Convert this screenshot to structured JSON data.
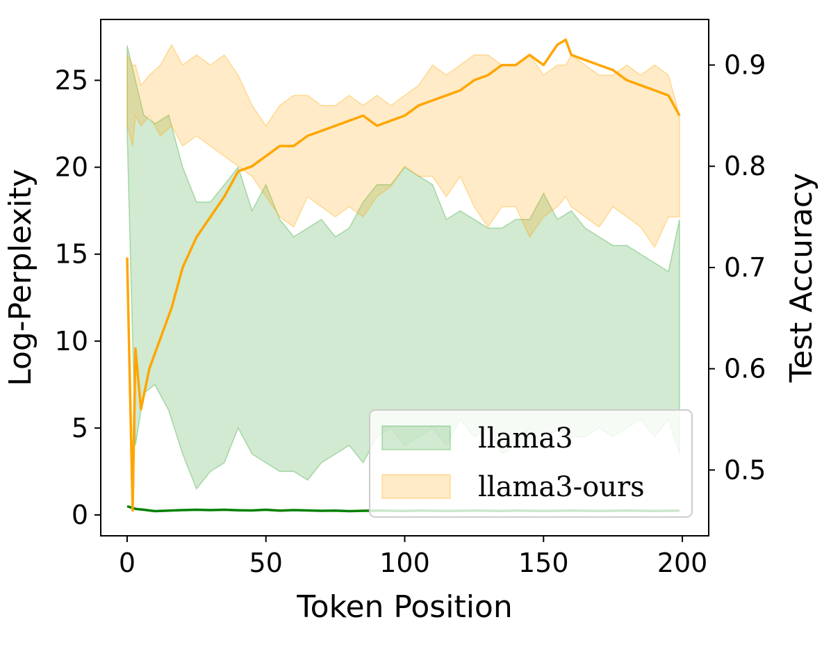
{
  "chart_data": {
    "type": "line",
    "xlabel": "Token Position",
    "ylabel_left": "Log-Perplexity",
    "ylabel_right": "Test Accuracy",
    "xlim": [
      -9.5,
      209.5
    ],
    "ylim_left": [
      -1.2,
      28.5
    ],
    "ylim_right": [
      0.435,
      0.945
    ],
    "xticks": [
      0,
      50,
      100,
      150,
      200
    ],
    "yticks_left": [
      0,
      5,
      10,
      15,
      20,
      25
    ],
    "yticks_right": [
      0.5,
      0.6,
      0.7,
      0.8,
      0.9
    ],
    "legend_position": "lower-right",
    "series": [
      {
        "name": "llama3",
        "axis": "left",
        "color": "#008000",
        "band_color": "#2ca02c",
        "x": [
          0,
          3,
          6,
          10,
          15,
          20,
          25,
          30,
          35,
          40,
          45,
          50,
          55,
          60,
          65,
          70,
          75,
          80,
          85,
          90,
          95,
          100,
          105,
          110,
          115,
          120,
          125,
          130,
          135,
          140,
          145,
          150,
          155,
          160,
          165,
          170,
          175,
          180,
          185,
          190,
          195,
          199
        ],
        "mean": [
          0.5,
          0.35,
          0.3,
          0.22,
          0.25,
          0.28,
          0.3,
          0.28,
          0.3,
          0.27,
          0.26,
          0.3,
          0.25,
          0.28,
          0.26,
          0.24,
          0.25,
          0.22,
          0.24,
          0.25,
          0.24,
          0.23,
          0.25,
          0.24,
          0.23,
          0.24,
          0.25,
          0.24,
          0.23,
          0.25,
          0.24,
          0.23,
          0.24,
          0.25,
          0.24,
          0.23,
          0.24,
          0.25,
          0.24,
          0.23,
          0.24,
          0.25
        ],
        "upper": [
          27.0,
          25.0,
          23.0,
          22.5,
          23.0,
          20.0,
          18.0,
          18.0,
          19.0,
          20.0,
          17.5,
          19.0,
          17.0,
          16.0,
          16.5,
          17.0,
          16.0,
          16.5,
          18.0,
          19.0,
          19.0,
          20.0,
          19.5,
          19.0,
          17.0,
          17.5,
          17.0,
          16.5,
          16.5,
          17.0,
          17.0,
          18.5,
          17.0,
          17.5,
          16.5,
          16.0,
          15.5,
          15.5,
          15.0,
          14.5,
          14.0,
          17.0
        ],
        "lower": [
          22.0,
          4.0,
          7.0,
          7.5,
          6.0,
          3.5,
          1.5,
          2.5,
          3.0,
          5.0,
          3.5,
          3.0,
          2.5,
          2.5,
          2.0,
          3.0,
          3.5,
          4.0,
          3.0,
          4.5,
          5.0,
          4.0,
          4.5,
          5.0,
          4.0,
          5.5,
          4.5,
          5.0,
          3.5,
          4.0,
          5.0,
          4.0,
          5.0,
          4.5,
          4.5,
          5.0,
          4.5,
          5.0,
          5.5,
          4.5,
          5.5,
          3.5
        ]
      },
      {
        "name": "llama3-ours",
        "axis": "right",
        "color": "#ffa500",
        "band_color": "#ffa500",
        "x": [
          0,
          2,
          3,
          5,
          8,
          12,
          16,
          20,
          25,
          30,
          35,
          40,
          45,
          50,
          55,
          60,
          65,
          70,
          75,
          80,
          85,
          90,
          95,
          100,
          105,
          110,
          115,
          120,
          125,
          130,
          135,
          140,
          145,
          150,
          155,
          158,
          160,
          165,
          170,
          175,
          180,
          185,
          190,
          195,
          199
        ],
        "mean": [
          0.71,
          0.46,
          0.62,
          0.56,
          0.6,
          0.63,
          0.66,
          0.7,
          0.73,
          0.75,
          0.77,
          0.795,
          0.8,
          0.81,
          0.82,
          0.82,
          0.83,
          0.835,
          0.84,
          0.845,
          0.85,
          0.84,
          0.845,
          0.85,
          0.86,
          0.865,
          0.87,
          0.875,
          0.885,
          0.89,
          0.9,
          0.9,
          0.91,
          0.9,
          0.92,
          0.925,
          0.91,
          0.905,
          0.9,
          0.895,
          0.885,
          0.88,
          0.875,
          0.87,
          0.85
        ],
        "upper": [
          0.91,
          0.9,
          0.9,
          0.88,
          0.89,
          0.9,
          0.92,
          0.9,
          0.91,
          0.9,
          0.91,
          0.89,
          0.86,
          0.84,
          0.86,
          0.87,
          0.87,
          0.86,
          0.86,
          0.87,
          0.86,
          0.87,
          0.86,
          0.87,
          0.88,
          0.9,
          0.89,
          0.9,
          0.91,
          0.91,
          0.9,
          0.9,
          0.91,
          0.89,
          0.9,
          0.9,
          0.91,
          0.9,
          0.89,
          0.89,
          0.9,
          0.89,
          0.9,
          0.89,
          0.85
        ],
        "lower": [
          0.84,
          0.82,
          0.85,
          0.84,
          0.85,
          0.83,
          0.84,
          0.82,
          0.83,
          0.82,
          0.81,
          0.8,
          0.79,
          0.77,
          0.75,
          0.74,
          0.77,
          0.76,
          0.75,
          0.76,
          0.75,
          0.77,
          0.78,
          0.8,
          0.79,
          0.79,
          0.77,
          0.79,
          0.76,
          0.74,
          0.76,
          0.76,
          0.73,
          0.75,
          0.76,
          0.77,
          0.76,
          0.75,
          0.74,
          0.76,
          0.75,
          0.74,
          0.72,
          0.75,
          0.75
        ]
      }
    ]
  }
}
